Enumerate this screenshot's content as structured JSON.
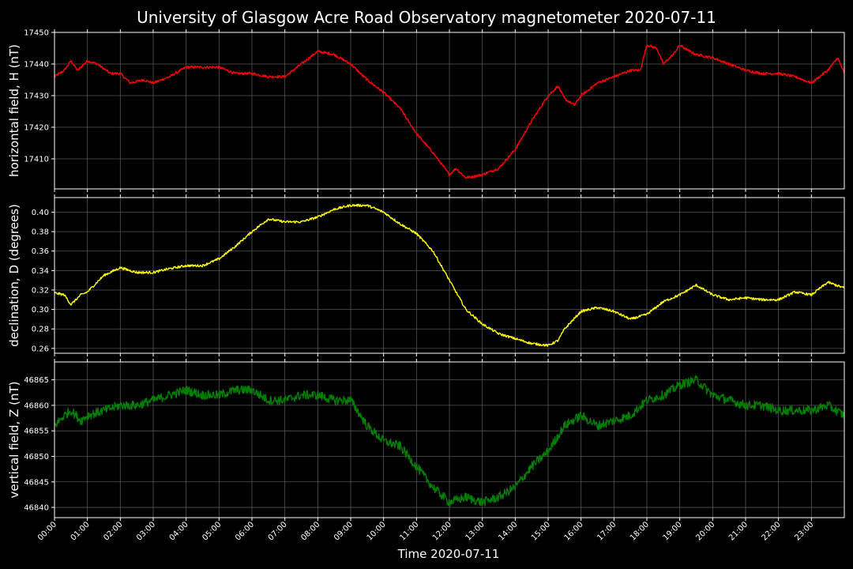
{
  "figure": {
    "title": "University of Glasgow Acre Road Observatory magnetometer 2020-07-11",
    "xlabel": "Time 2020-07-11",
    "background": "#000000",
    "grid_color": "#555555",
    "xticks": [
      "00:00",
      "01:00",
      "02:00",
      "03:00",
      "04:00",
      "05:00",
      "06:00",
      "07:00",
      "08:00",
      "09:00",
      "10:00",
      "11:00",
      "12:00",
      "13:00",
      "14:00",
      "15:00",
      "16:00",
      "17:00",
      "18:00",
      "19:00",
      "20:00",
      "21:00",
      "22:00",
      "23:00"
    ]
  },
  "chart_data": [
    {
      "type": "line",
      "ylabel": "horizontal field, H (nT)",
      "color": "#ff0000",
      "ylim": [
        17400.5,
        17450
      ],
      "yticks": [
        "17410",
        "17420",
        "17430",
        "17440",
        "17450"
      ],
      "ytick_values": [
        17410,
        17420,
        17430,
        17440,
        17450
      ],
      "noise": 0.4,
      "series": [
        {
          "x": [
            0,
            0.3,
            0.5,
            0.7,
            1.0,
            1.3,
            1.7,
            2.0,
            2.3,
            2.7,
            3.0,
            3.5,
            4.0,
            4.5,
            5.0,
            5.5,
            6.0,
            6.5,
            7.0,
            7.5,
            8.0,
            8.5,
            9.0,
            9.5,
            10.0,
            10.5,
            11.0,
            11.5,
            12.0,
            12.2,
            12.5,
            13.0,
            13.5,
            14.0,
            14.5,
            15.0,
            15.3,
            15.5,
            15.8,
            16.0,
            16.5,
            17.0,
            17.5,
            17.8,
            18.0,
            18.3,
            18.5,
            18.8,
            19.0,
            19.3,
            19.5,
            20.0,
            20.5,
            21.0,
            21.5,
            22.0,
            22.5,
            23.0,
            23.5,
            23.8,
            24.0
          ],
          "y": [
            17436,
            17438,
            17441,
            17438,
            17441,
            17440,
            17437,
            17437,
            17434,
            17435,
            17434,
            17436,
            17439,
            17439,
            17439,
            17437,
            17437,
            17436,
            17436,
            17440,
            17444,
            17443,
            17440,
            17435,
            17431,
            17426,
            17418,
            17412,
            17405,
            17407,
            17404,
            17405,
            17407,
            17413,
            17422,
            17430,
            17433,
            17429,
            17427,
            17430,
            17434,
            17436,
            17438,
            17438,
            17446,
            17445,
            17440,
            17443,
            17446,
            17444,
            17443,
            17442,
            17440,
            17438,
            17437,
            17437,
            17436,
            17434,
            17438,
            17442,
            17437
          ]
        }
      ]
    },
    {
      "type": "line",
      "ylabel": "declination, D (degrees)",
      "color": "#ffff00",
      "ylim": [
        0.255,
        0.415
      ],
      "yticks": [
        "0.26",
        "0.28",
        "0.30",
        "0.32",
        "0.34",
        "0.36",
        "0.38",
        "0.40"
      ],
      "ytick_values": [
        0.26,
        0.28,
        0.3,
        0.32,
        0.34,
        0.36,
        0.38,
        0.4
      ],
      "noise": 0.0012,
      "series": [
        {
          "x": [
            0,
            0.3,
            0.5,
            0.8,
            1.0,
            1.5,
            2.0,
            2.5,
            3.0,
            3.5,
            4.0,
            4.5,
            5.0,
            5.5,
            6.0,
            6.5,
            7.0,
            7.5,
            8.0,
            8.5,
            9.0,
            9.5,
            10.0,
            10.5,
            11.0,
            11.5,
            12.0,
            12.5,
            13.0,
            13.5,
            14.0,
            14.5,
            15.0,
            15.3,
            15.5,
            16.0,
            16.5,
            17.0,
            17.5,
            18.0,
            18.5,
            19.0,
            19.5,
            20.0,
            20.5,
            21.0,
            21.5,
            22.0,
            22.5,
            23.0,
            23.5,
            24.0
          ],
          "y": [
            0.317,
            0.315,
            0.305,
            0.315,
            0.318,
            0.335,
            0.343,
            0.338,
            0.338,
            0.342,
            0.345,
            0.345,
            0.352,
            0.365,
            0.38,
            0.393,
            0.39,
            0.39,
            0.395,
            0.403,
            0.407,
            0.407,
            0.4,
            0.388,
            0.378,
            0.36,
            0.33,
            0.3,
            0.285,
            0.275,
            0.27,
            0.265,
            0.263,
            0.268,
            0.28,
            0.298,
            0.302,
            0.298,
            0.29,
            0.295,
            0.308,
            0.315,
            0.325,
            0.315,
            0.31,
            0.312,
            0.31,
            0.31,
            0.318,
            0.315,
            0.328,
            0.322
          ]
        }
      ]
    },
    {
      "type": "line",
      "ylabel": "vertical field, Z (nT)",
      "color": "#008000",
      "ylim": [
        46838,
        46868.5
      ],
      "yticks": [
        "46840",
        "46845",
        "46850",
        "46855",
        "46860",
        "46865"
      ],
      "ytick_values": [
        46840,
        46845,
        46850,
        46855,
        46860,
        46865
      ],
      "noise": 0.9,
      "series": [
        {
          "x": [
            0,
            0.3,
            0.5,
            0.8,
            1.0,
            1.5,
            2.0,
            2.5,
            3.0,
            3.5,
            4.0,
            4.5,
            5.0,
            5.5,
            6.0,
            6.5,
            7.0,
            7.5,
            8.0,
            8.5,
            9.0,
            9.5,
            10.0,
            10.5,
            11.0,
            11.5,
            12.0,
            12.5,
            13.0,
            13.5,
            14.0,
            14.5,
            15.0,
            15.3,
            15.5,
            16.0,
            16.5,
            17.0,
            17.5,
            18.0,
            18.5,
            19.0,
            19.5,
            20.0,
            20.5,
            21.0,
            21.5,
            22.0,
            22.5,
            23.0,
            23.5,
            24.0
          ],
          "y": [
            46856,
            46858,
            46859,
            46857,
            46858,
            46859,
            46860,
            46860,
            46861,
            46862,
            46863,
            46862,
            46862,
            46863,
            46863,
            46861,
            46861,
            46862,
            46862,
            46861,
            46861,
            46856,
            46853,
            46852,
            46848,
            46844,
            46841,
            46842,
            46841,
            46842,
            46844,
            46848,
            46851,
            46854,
            46856,
            46858,
            46856,
            46857,
            46858,
            46861,
            46862,
            46864,
            46865,
            46862,
            46861,
            46860,
            46860,
            46859,
            46859,
            46859,
            46860,
            46858
          ]
        }
      ]
    }
  ]
}
